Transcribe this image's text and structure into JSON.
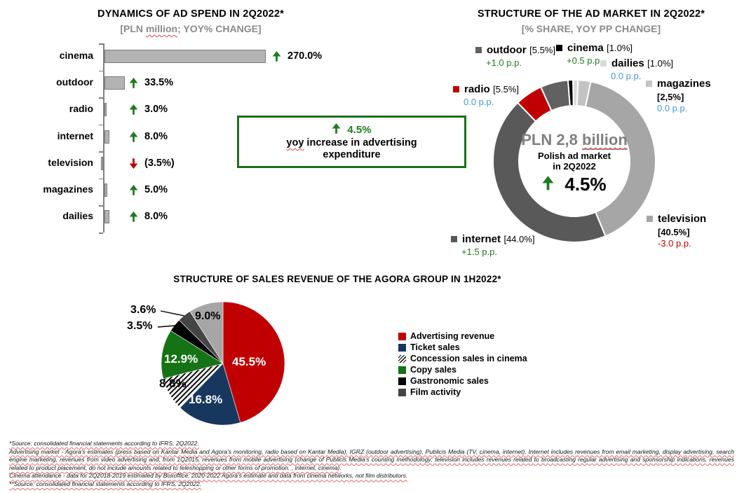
{
  "palette": {
    "green": "#1e7b1e",
    "blue": "#4a96d2",
    "red": "#c00000",
    "bar_fill": "#b3b3b3",
    "bar_border": "#7d7d7d"
  },
  "chart_data": [
    {
      "type": "bar",
      "orientation": "horizontal",
      "title": "DYNAMICS OF AD SPEND IN 2Q2022*",
      "subtitle_pre": "[PLN ",
      "subtitle_squiggle": "million",
      "subtitle_post": "; YOY% CHANGE]",
      "categories": [
        "cinema",
        "outdoor",
        "radio",
        "internet",
        "television",
        "magazines",
        "dailies"
      ],
      "values": [
        270.0,
        33.5,
        3.0,
        8.0,
        -3.5,
        5.0,
        8.0
      ],
      "value_labels": [
        "270.0%",
        "33.5%",
        "3.0%",
        "8.0%",
        "(3.5%)",
        "5.0%",
        "8.0%"
      ],
      "directions": [
        "up",
        "up",
        "up",
        "up",
        "down",
        "up",
        "up"
      ],
      "xlabel": "",
      "ylabel": "",
      "grid": false
    },
    {
      "type": "pie",
      "subtype": "donut",
      "title": "STRUCTURE OF THE AD MARKET IN 2Q2022*",
      "subtitle": "[% SHARE, YOY PP CHANGE]",
      "center": {
        "headline_pre": "PLN 2,8 ",
        "headline_squiggle": "billion",
        "line2": "Polish ad market",
        "line3": "in 2Q2022",
        "pct": "4.5%"
      },
      "start_angle_deg": -4.5,
      "segments": [
        {
          "name": "cinema",
          "value": 1.0,
          "share_label": "[1.0%]",
          "change": "+0.5 p.p.",
          "change_color": "green",
          "color": "#000000"
        },
        {
          "name": "dailies",
          "value": 1.0,
          "share_label": "[1.0%]",
          "change": "0.0 p.p.",
          "change_color": "blue",
          "color": "#d9d9d9"
        },
        {
          "name": "magazines",
          "value": 2.5,
          "share_label": "[2,5%]",
          "change": "0.0 p.p.",
          "change_color": "blue",
          "color": "#c3c3c3"
        },
        {
          "name": "television",
          "value": 40.5,
          "share_label": "[40.5%]",
          "change": "-3.0 p.p.",
          "change_color": "red",
          "color": "#a6a6a6"
        },
        {
          "name": "internet",
          "value": 44.0,
          "share_label": "[44.0%]",
          "change": "+1.5 p.p.",
          "change_color": "green",
          "color": "#595959"
        },
        {
          "name": "radio",
          "value": 5.5,
          "share_label": "[5.5%]",
          "change": "0.0 p.p.",
          "change_color": "blue",
          "color": "#c00000"
        },
        {
          "name": "outdoor",
          "value": 5.5,
          "share_label": "[5.5%]",
          "change": "+1.0 p.p.",
          "change_color": "green",
          "color": "#616161"
        }
      ]
    },
    {
      "type": "pie",
      "title": "STRUCTURE OF SALES REVENUE OF THE AGORA GROUP IN 1H2022*",
      "slices": [
        {
          "name": "Advertising revenue",
          "value": 45.5,
          "label": "45.5%",
          "color": "#c00000"
        },
        {
          "name": "Ticket sales",
          "value": 16.8,
          "label": "16.8%",
          "color": "#17375e"
        },
        {
          "name": "Concession sales in cinema",
          "value": 8.8,
          "label": "8.8%",
          "color": "hatch"
        },
        {
          "name": "Copy sales",
          "value": 12.9,
          "label": "12.9%",
          "color": "#157315"
        },
        {
          "name": "Gastronomic sales",
          "value": 3.5,
          "label": "3.5%",
          "color": "#000000"
        },
        {
          "name": "Film activity",
          "value": 3.6,
          "label": "3.6%",
          "color": "#454545"
        },
        {
          "name": "",
          "value": 9.0,
          "label": "9.0%",
          "color": "#a6a6a6"
        }
      ],
      "legend": [
        "Advertising revenue",
        "Ticket sales",
        "Concession sales in cinema",
        "Copy sales",
        "Gastronomic sales",
        "Film activity"
      ],
      "legend_position": "right"
    }
  ],
  "highlight_box": {
    "pct": "4.5%",
    "line1_squiggle": "yoy",
    "line1_post": " increase in advertising",
    "line2": "expenditure"
  },
  "footnotes": {
    "line1": "*Source: consolidated financial statements according to IFRS, 2Q2022.",
    "line2": "Advertising market - Agora's estimates (press based on Kantar Media and Agora's monitoring, radio based on Kantar Media), IGRZ (outdoor advertising), Publicis Media (TV, cinema, internet). Internet includes revenues from email marketing, display advertising, search engine marketing, revenues from video advertising and, from 1Q2015, revenues from mobile advertising (change of Publicis Media's counting methodology; television includes revenues related to broadcasting regular advertising and sponsorship indications, revenues related to product placement, do not include amounts related to teleshopping or other forms of promotion. , internet, cinema).",
    "line3": "Cinema attendance - data for 2Q2018-2019 estimated by Boxoffice; 2020-2022 Agora's estimate and data from cinema networks, not film distributors.",
    "line4": "**Source: consolidated financial statements according to IFRS, 2Q2022."
  }
}
